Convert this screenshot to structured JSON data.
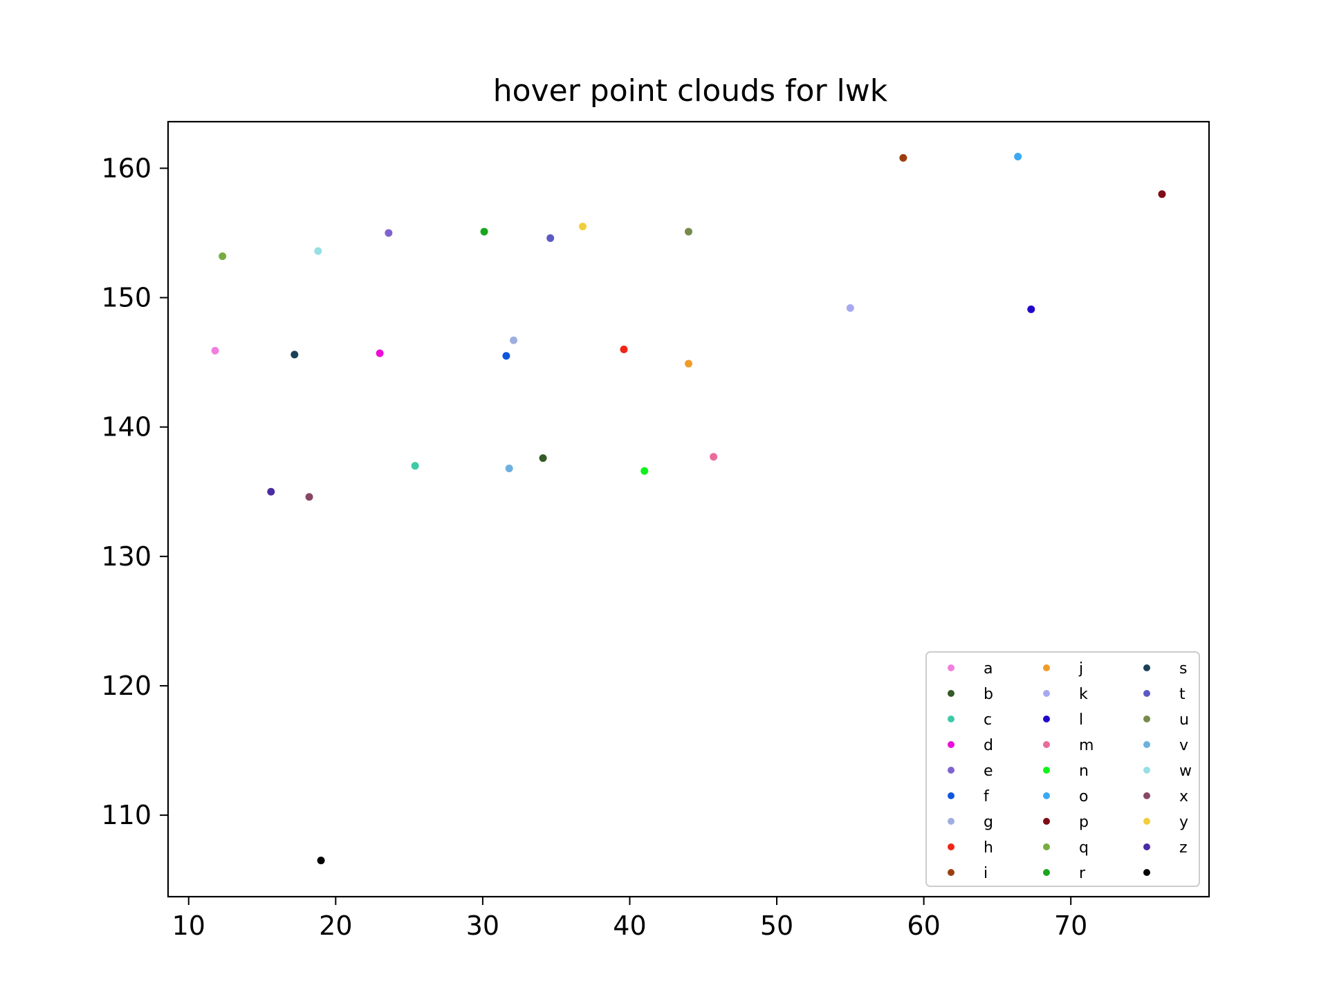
{
  "chart_data": {
    "type": "scatter",
    "title": "hover point clouds for lwk",
    "xlabel": "",
    "ylabel": "",
    "xlim": [
      8.6,
      79.4
    ],
    "ylim": [
      103.7,
      163.6
    ],
    "xticks": [
      10,
      20,
      30,
      40,
      50,
      60,
      70
    ],
    "yticks": [
      110,
      120,
      130,
      140,
      150,
      160
    ],
    "grid": false,
    "legend_position": "lower right",
    "legend_columns": 3,
    "series": [
      {
        "name": "a",
        "color": "#f27ee0",
        "x": 11.8,
        "y": 145.9
      },
      {
        "name": "b",
        "color": "#345a26",
        "x": 34.1,
        "y": 137.6
      },
      {
        "name": "c",
        "color": "#3ec9a7",
        "x": 25.4,
        "y": 137.0
      },
      {
        "name": "d",
        "color": "#ec0ed9",
        "x": 23.0,
        "y": 145.7
      },
      {
        "name": "e",
        "color": "#8062cf",
        "x": 23.6,
        "y": 155.0
      },
      {
        "name": "f",
        "color": "#0d57dd",
        "x": 31.6,
        "y": 145.5
      },
      {
        "name": "g",
        "color": "#9eaee0",
        "x": 32.1,
        "y": 146.7
      },
      {
        "name": "h",
        "color": "#f22413",
        "x": 39.6,
        "y": 146.0
      },
      {
        "name": "i",
        "color": "#9b3e0e",
        "x": 58.6,
        "y": 160.8
      },
      {
        "name": "j",
        "color": "#ef9c2a",
        "x": 44.0,
        "y": 144.9
      },
      {
        "name": "k",
        "color": "#a7a9f0",
        "x": 55.0,
        "y": 149.2
      },
      {
        "name": "l",
        "color": "#2006cc",
        "x": 67.3,
        "y": 149.1
      },
      {
        "name": "m",
        "color": "#e96a9b",
        "x": 45.7,
        "y": 137.7
      },
      {
        "name": "n",
        "color": "#0ff21a",
        "x": 41.0,
        "y": 136.6
      },
      {
        "name": "o",
        "color": "#3aa9f2",
        "x": 66.4,
        "y": 160.9
      },
      {
        "name": "p",
        "color": "#7e0b15",
        "x": 76.2,
        "y": 158.0
      },
      {
        "name": "q",
        "color": "#77ac41",
        "x": 12.3,
        "y": 153.2
      },
      {
        "name": "r",
        "color": "#19a61d",
        "x": 30.1,
        "y": 155.1
      },
      {
        "name": "s",
        "color": "#1b4156",
        "x": 17.2,
        "y": 145.6
      },
      {
        "name": "t",
        "color": "#5d5ac3",
        "x": 34.6,
        "y": 154.6
      },
      {
        "name": "u",
        "color": "#778a4c",
        "x": 44.0,
        "y": 155.1
      },
      {
        "name": "v",
        "color": "#6db1e0",
        "x": 31.8,
        "y": 136.8
      },
      {
        "name": "w",
        "color": "#96dfe4",
        "x": 18.8,
        "y": 153.6
      },
      {
        "name": "x",
        "color": "#884766",
        "x": 18.2,
        "y": 134.6
      },
      {
        "name": "y",
        "color": "#f1ce3a",
        "x": 36.8,
        "y": 155.5
      },
      {
        "name": "z",
        "color": "#4b2ca2",
        "x": 15.6,
        "y": 135.0
      },
      {
        "name": "",
        "color": "#000000",
        "x": 19.0,
        "y": 106.5
      }
    ]
  }
}
